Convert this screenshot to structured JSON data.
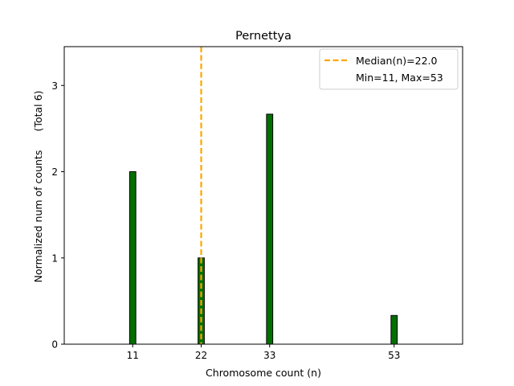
{
  "chart_data": {
    "type": "bar",
    "title": "Pernettya",
    "xlabel": "Chromosome count (n)",
    "ylabel": "Normalized num of counts",
    "ylabel_extra": "(Total 6)",
    "x": [
      11,
      22,
      33,
      53
    ],
    "values": [
      2.0,
      1.0,
      2.667,
      0.333
    ],
    "xticks": [
      11,
      22,
      33,
      53
    ],
    "yticks": [
      0,
      1,
      2,
      3
    ],
    "xlim": [
      0,
      64
    ],
    "ylim": [
      0,
      3.45
    ],
    "bar_width": 1,
    "bar_color": "#007000",
    "median": 22.0,
    "median_color": "#ffa500",
    "legend": {
      "placement": "top-right",
      "median_label": "Median(n)=22.0",
      "range_label": "Min=11, Max=53"
    }
  }
}
